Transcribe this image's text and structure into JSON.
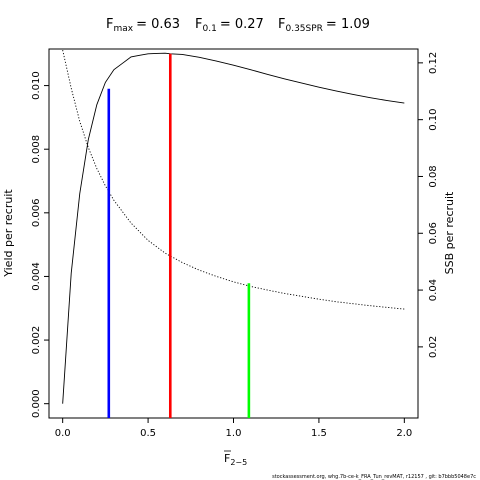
{
  "chart_data": {
    "type": "line",
    "title": {
      "fmax_label": "F",
      "fmax_sub": "max",
      "fmax_value": "= 0.63",
      "f01_label": "F",
      "f01_sub": "0.1",
      "f01_value": "= 0.27",
      "fspr_label": "F",
      "fspr_sub": "0.35SPR",
      "fspr_value": "= 1.09"
    },
    "xlabel": "F",
    "xlabel_sub": "2−5",
    "ylabel_left": "Yield per recruit",
    "ylabel_right": "SSB per recruit",
    "xlim": [
      -0.08,
      2.08
    ],
    "ylim_left": [
      -0.00045,
      0.01115
    ],
    "ylim_right": [
      -0.00504,
      0.12488
    ],
    "x_ticks": [
      0,
      0.5,
      1,
      1.5,
      2
    ],
    "x_tick_labels": [
      "0.0",
      "0.5",
      "1.0",
      "1.5",
      "2.0"
    ],
    "y_left_ticks": [
      0,
      0.002,
      0.004,
      0.006,
      0.008,
      0.01
    ],
    "y_left_tick_labels": [
      "0.000",
      "0.002",
      "0.004",
      "0.006",
      "0.008",
      "0.010"
    ],
    "y_right_ticks": [
      0.02,
      0.04,
      0.06,
      0.08,
      0.1,
      0.12
    ],
    "y_right_tick_labels": [
      "0.02",
      "0.04",
      "0.06",
      "0.08",
      "0.10",
      "0.12"
    ],
    "grid": false,
    "series": [
      {
        "axis": "left",
        "style": "solid",
        "color": "#000000",
        "x": [
          0,
          0.05,
          0.1,
          0.15,
          0.2,
          0.25,
          0.3,
          0.35,
          0.4,
          0.45,
          0.5,
          0.55,
          0.6,
          0.63,
          0.7,
          0.8,
          0.9,
          1.0,
          1.1,
          1.2,
          1.3,
          1.4,
          1.5,
          1.6,
          1.7,
          1.8,
          1.9,
          2.0
        ],
        "y": [
          0.0,
          0.0041,
          0.0066,
          0.0083,
          0.0094,
          0.0101,
          0.0105,
          0.0107,
          0.0109,
          0.01095,
          0.011,
          0.01101,
          0.01102,
          0.011,
          0.01098,
          0.01089,
          0.01077,
          0.01064,
          0.0105,
          0.01035,
          0.01021,
          0.01008,
          0.00995,
          0.00983,
          0.00972,
          0.00962,
          0.00953,
          0.00945
        ]
      },
      {
        "axis": "right",
        "style": "dotted",
        "color": "#000000",
        "x": [
          0,
          0.05,
          0.1,
          0.15,
          0.2,
          0.25,
          0.3,
          0.4,
          0.5,
          0.6,
          0.7,
          0.8,
          0.9,
          1.0,
          1.1,
          1.2,
          1.3,
          1.4,
          1.5,
          1.6,
          1.7,
          1.8,
          1.9,
          2.0
        ],
        "y": [
          0.1245,
          0.1111,
          0.0994,
          0.0902,
          0.0828,
          0.0767,
          0.0716,
          0.0636,
          0.0575,
          0.053,
          0.0497,
          0.047,
          0.0448,
          0.0429,
          0.0413,
          0.04,
          0.0388,
          0.0378,
          0.0368,
          0.0359,
          0.0352,
          0.0345,
          0.0339,
          0.0333
        ]
      }
    ],
    "reference_lines": [
      {
        "name": "F0.1",
        "x": 0.27,
        "color": "#0000ff",
        "axis": "left",
        "y_top": 0.0099
      },
      {
        "name": "Fmax",
        "x": 0.63,
        "color": "#ff0000",
        "axis": "left",
        "y_top": 0.011
      },
      {
        "name": "F0.35SPR",
        "x": 1.09,
        "color": "#00ff00",
        "axis": "right",
        "y_top": 0.0424
      }
    ]
  },
  "footer": "stockassessment.org, whg.7b-ce-k_FRA_Tun_revMAT, r12157 , git: b7bbb5048e7c"
}
